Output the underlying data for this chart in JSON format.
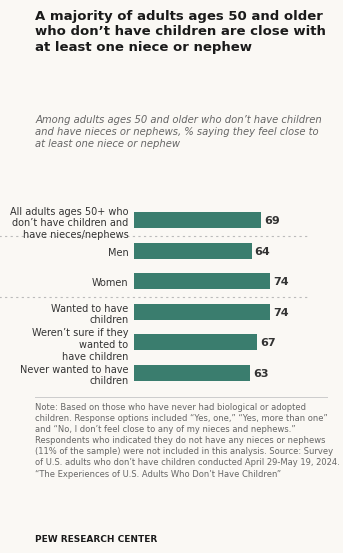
{
  "title": "A majority of adults ages 50 and older\nwho don’t have children are close with\nat least one niece or nephew",
  "subtitle": "Among adults ages 50 and older who don’t have children\nand have nieces or nephews, % saying they feel close to\nat least one niece or nephew",
  "categories": [
    "All adults ages 50+ who\ndon’t have children and\nhave nieces/nephews",
    "Men",
    "Women",
    "Wanted to have\nchildren",
    "Weren’t sure if they\nwanted to\nhave children",
    "Never wanted to have\nchildren"
  ],
  "values": [
    69,
    64,
    74,
    74,
    67,
    63
  ],
  "bar_color": "#3a7d6e",
  "note": "Note: Based on those who have never had biological or adopted children. Response options included “Yes, one,” “Yes, more than one” and “No, I don’t feel close to any of my nieces and nephews.” Respondents who indicated they do not have any nieces or nephews (11% of the sample) were not included in this analysis. Source: Survey of U.S. adults who don’t have children conducted April 29-May 19, 2024.\n“The Experiences of U.S. Adults Who Don’t Have Children”",
  "source_label": "PEW RESEARCH CENTER",
  "background_color": "#faf8f4",
  "title_fontsize": 9.5,
  "subtitle_fontsize": 7.2,
  "bar_label_fontsize": 8,
  "category_fontsize": 7,
  "note_fontsize": 6.0,
  "source_fontsize": 6.5,
  "xlim": [
    0,
    88
  ]
}
